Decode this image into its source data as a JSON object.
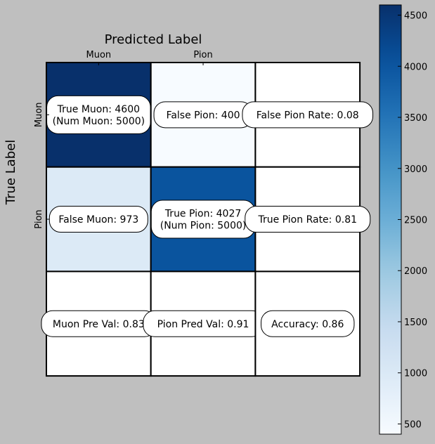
{
  "chart_data": {
    "type": "heatmap",
    "title": "Predicted Label",
    "xlabel": "Predicted Label",
    "ylabel": "True Label",
    "x_categories": [
      "Muon",
      "Pion"
    ],
    "y_categories": [
      "Muon",
      "Pion"
    ],
    "colormap": "Blues",
    "cells": [
      {
        "row": 0,
        "col": 0,
        "value": 4600,
        "label": "True Muon: 4600\n(Num Muon: 5000)"
      },
      {
        "row": 0,
        "col": 1,
        "value": 400,
        "label": "False Pion: 400"
      },
      {
        "row": 0,
        "col": 2,
        "value": null,
        "label": "False Pion Rate: 0.08"
      },
      {
        "row": 1,
        "col": 0,
        "value": 973,
        "label": "False Muon: 973"
      },
      {
        "row": 1,
        "col": 1,
        "value": 4027,
        "label": "True Pion: 4027\n(Num Pion: 5000)"
      },
      {
        "row": 1,
        "col": 2,
        "value": null,
        "label": "True Pion Rate: 0.81"
      },
      {
        "row": 2,
        "col": 0,
        "value": null,
        "label": "Muon Pre Val: 0.83"
      },
      {
        "row": 2,
        "col": 1,
        "value": null,
        "label": "Pion Pred Val: 0.91"
      },
      {
        "row": 2,
        "col": 2,
        "value": null,
        "label": "Accuracy: 0.86"
      }
    ],
    "colorbar": {
      "min": 400,
      "max": 4600,
      "ticks": [
        500,
        1000,
        1500,
        2000,
        2500,
        3000,
        3500,
        4000,
        4500
      ]
    },
    "colors": {
      "background": "#bfbfbf",
      "empty_cell": "#ffffff",
      "grid_line": "#000000"
    }
  }
}
